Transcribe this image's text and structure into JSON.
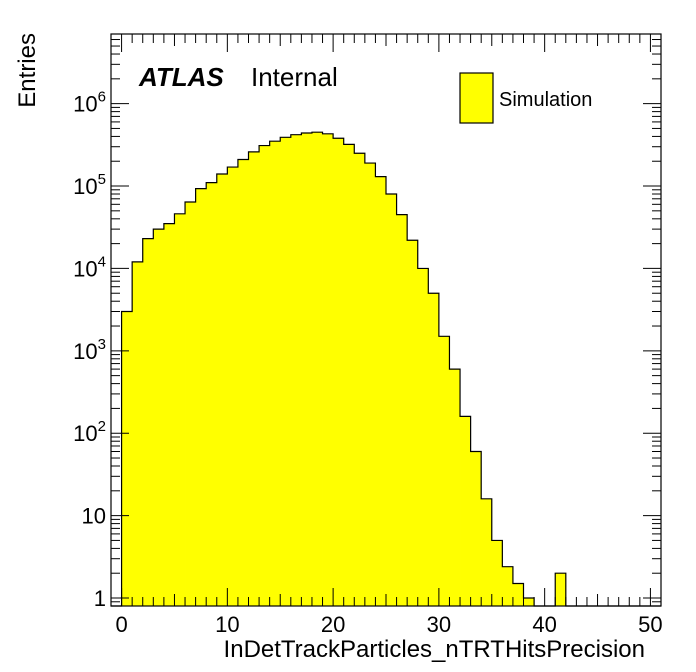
{
  "chart_data": {
    "type": "bar",
    "style": "histogram",
    "xlabel": "InDetTrackParticles_nTRTHitsPrecision",
    "ylabel": "Entries",
    "xlim": [
      -1,
      51
    ],
    "ylim": [
      0.8,
      7000000
    ],
    "yscale": "log",
    "x_tick_labels": [
      "0",
      "10",
      "20",
      "30",
      "40",
      "50"
    ],
    "y_tick_labels": [
      {
        "value": 1,
        "base": "1",
        "exp": ""
      },
      {
        "value": 10,
        "base": "10",
        "exp": ""
      },
      {
        "value": 100,
        "base": "10",
        "exp": "2"
      },
      {
        "value": 1000,
        "base": "10",
        "exp": "3"
      },
      {
        "value": 10000,
        "base": "10",
        "exp": "4"
      },
      {
        "value": 100000,
        "base": "10",
        "exp": "5"
      },
      {
        "value": 1000000,
        "base": "10",
        "exp": "6"
      }
    ],
    "label_atlas": "ATLAS",
    "label_status": "Internal",
    "legend": [
      {
        "name": "Simulation",
        "color": "#ffff00"
      }
    ],
    "legend_position": "top-right",
    "fill_color": "#ffff00",
    "line_color": "#000000",
    "bin_width": 1,
    "bin_start": -1,
    "values": [
      0,
      3000,
      12000,
      23000,
      30000,
      35000,
      46000,
      64000,
      93000,
      110000,
      140000,
      170000,
      210000,
      260000,
      310000,
      350000,
      390000,
      420000,
      440000,
      450000,
      430000,
      380000,
      320000,
      250000,
      190000,
      130000,
      80000,
      45000,
      22000,
      10000,
      5000,
      1500,
      600,
      160,
      60,
      16,
      5,
      2.4,
      1.5,
      1,
      0,
      0,
      2,
      0,
      0,
      0,
      0,
      0,
      0,
      0,
      0,
      0
    ]
  }
}
